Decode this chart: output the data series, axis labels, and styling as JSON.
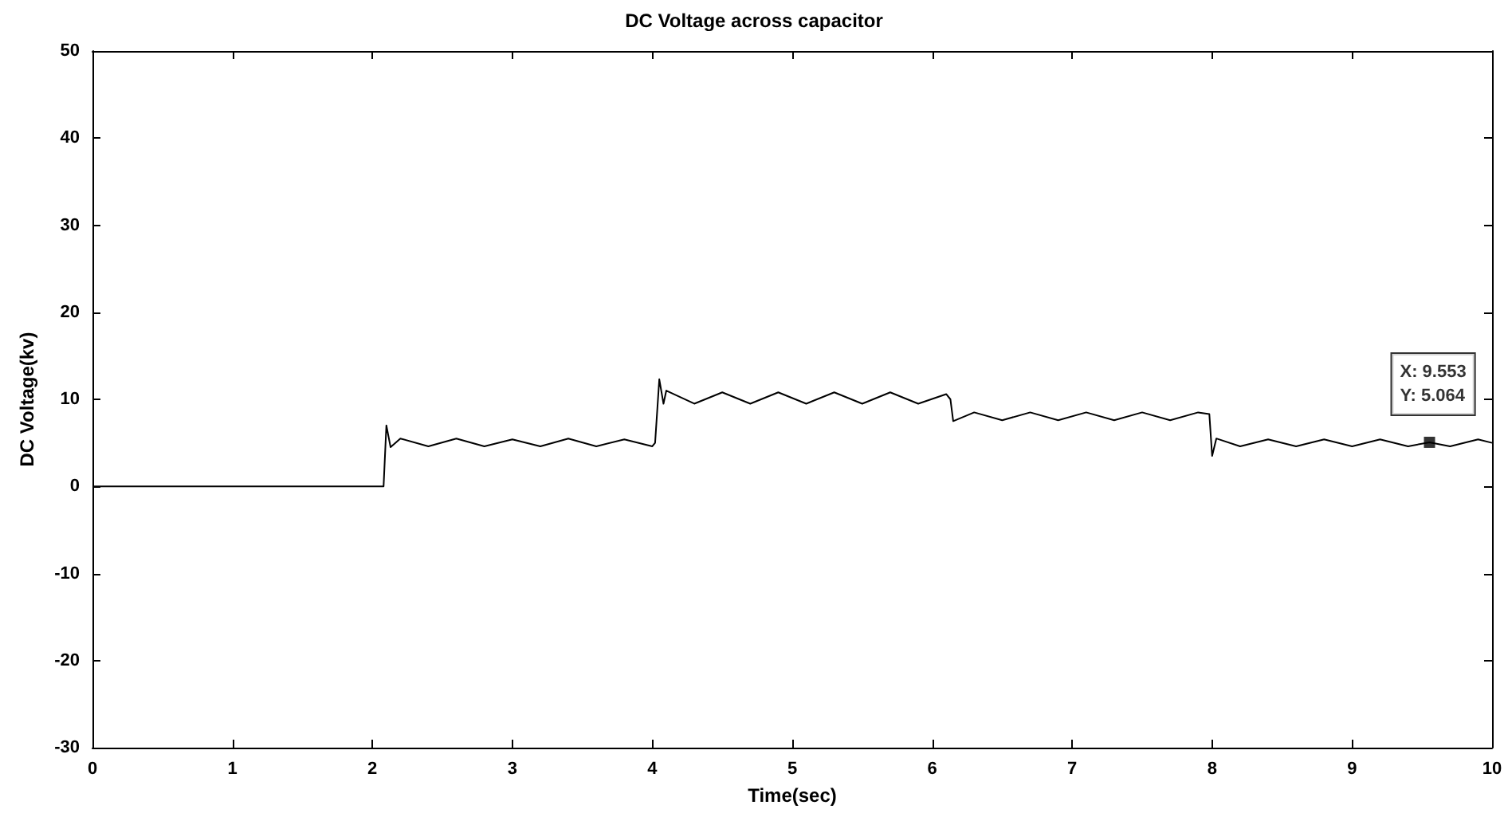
{
  "chart_data": {
    "type": "line",
    "title": "DC Voltage across capacitor",
    "xlabel": "Time(sec)",
    "ylabel": "DC Voltage(kv)",
    "x": [
      0,
      2.08,
      2.1,
      2.13,
      2.2,
      2.4,
      2.6,
      2.8,
      3.0,
      3.2,
      3.4,
      3.6,
      3.8,
      4.0,
      4.02,
      4.05,
      4.08,
      4.1,
      4.3,
      4.5,
      4.7,
      4.9,
      5.1,
      5.3,
      5.5,
      5.7,
      5.9,
      6.1,
      6.13,
      6.15,
      6.3,
      6.5,
      6.7,
      6.9,
      7.1,
      7.3,
      7.5,
      7.7,
      7.9,
      7.98,
      8.0,
      8.03,
      8.2,
      8.4,
      8.6,
      8.8,
      9.0,
      9.2,
      9.4,
      9.553,
      9.7,
      9.9,
      10
    ],
    "series": [
      {
        "color": "#000000",
        "values": [
          0,
          0,
          7,
          4.5,
          5.5,
          4.6,
          5.5,
          4.6,
          5.4,
          4.6,
          5.5,
          4.6,
          5.4,
          4.6,
          5,
          12.3,
          9.5,
          11,
          9.5,
          10.8,
          9.5,
          10.8,
          9.5,
          10.8,
          9.5,
          10.8,
          9.5,
          10.6,
          10,
          7.5,
          8.5,
          7.6,
          8.5,
          7.6,
          8.5,
          7.6,
          8.5,
          7.6,
          8.5,
          8.3,
          3.5,
          5.5,
          4.6,
          5.4,
          4.6,
          5.4,
          4.6,
          5.4,
          4.6,
          5.064,
          4.6,
          5.4,
          5
        ]
      }
    ],
    "xlim": [
      0,
      10
    ],
    "xticks": [
      0,
      1,
      2,
      3,
      4,
      5,
      6,
      7,
      8,
      9,
      10
    ],
    "ylim": [
      -30,
      50
    ],
    "yticks": [
      -30,
      -20,
      -10,
      0,
      10,
      20,
      30,
      40,
      50
    ],
    "annotations": [
      {
        "text": "X: 9.553\nY: 5.064",
        "x": 9.553,
        "y": 5.064
      }
    ],
    "grid": false,
    "marker": "none",
    "line_style": "solid"
  }
}
